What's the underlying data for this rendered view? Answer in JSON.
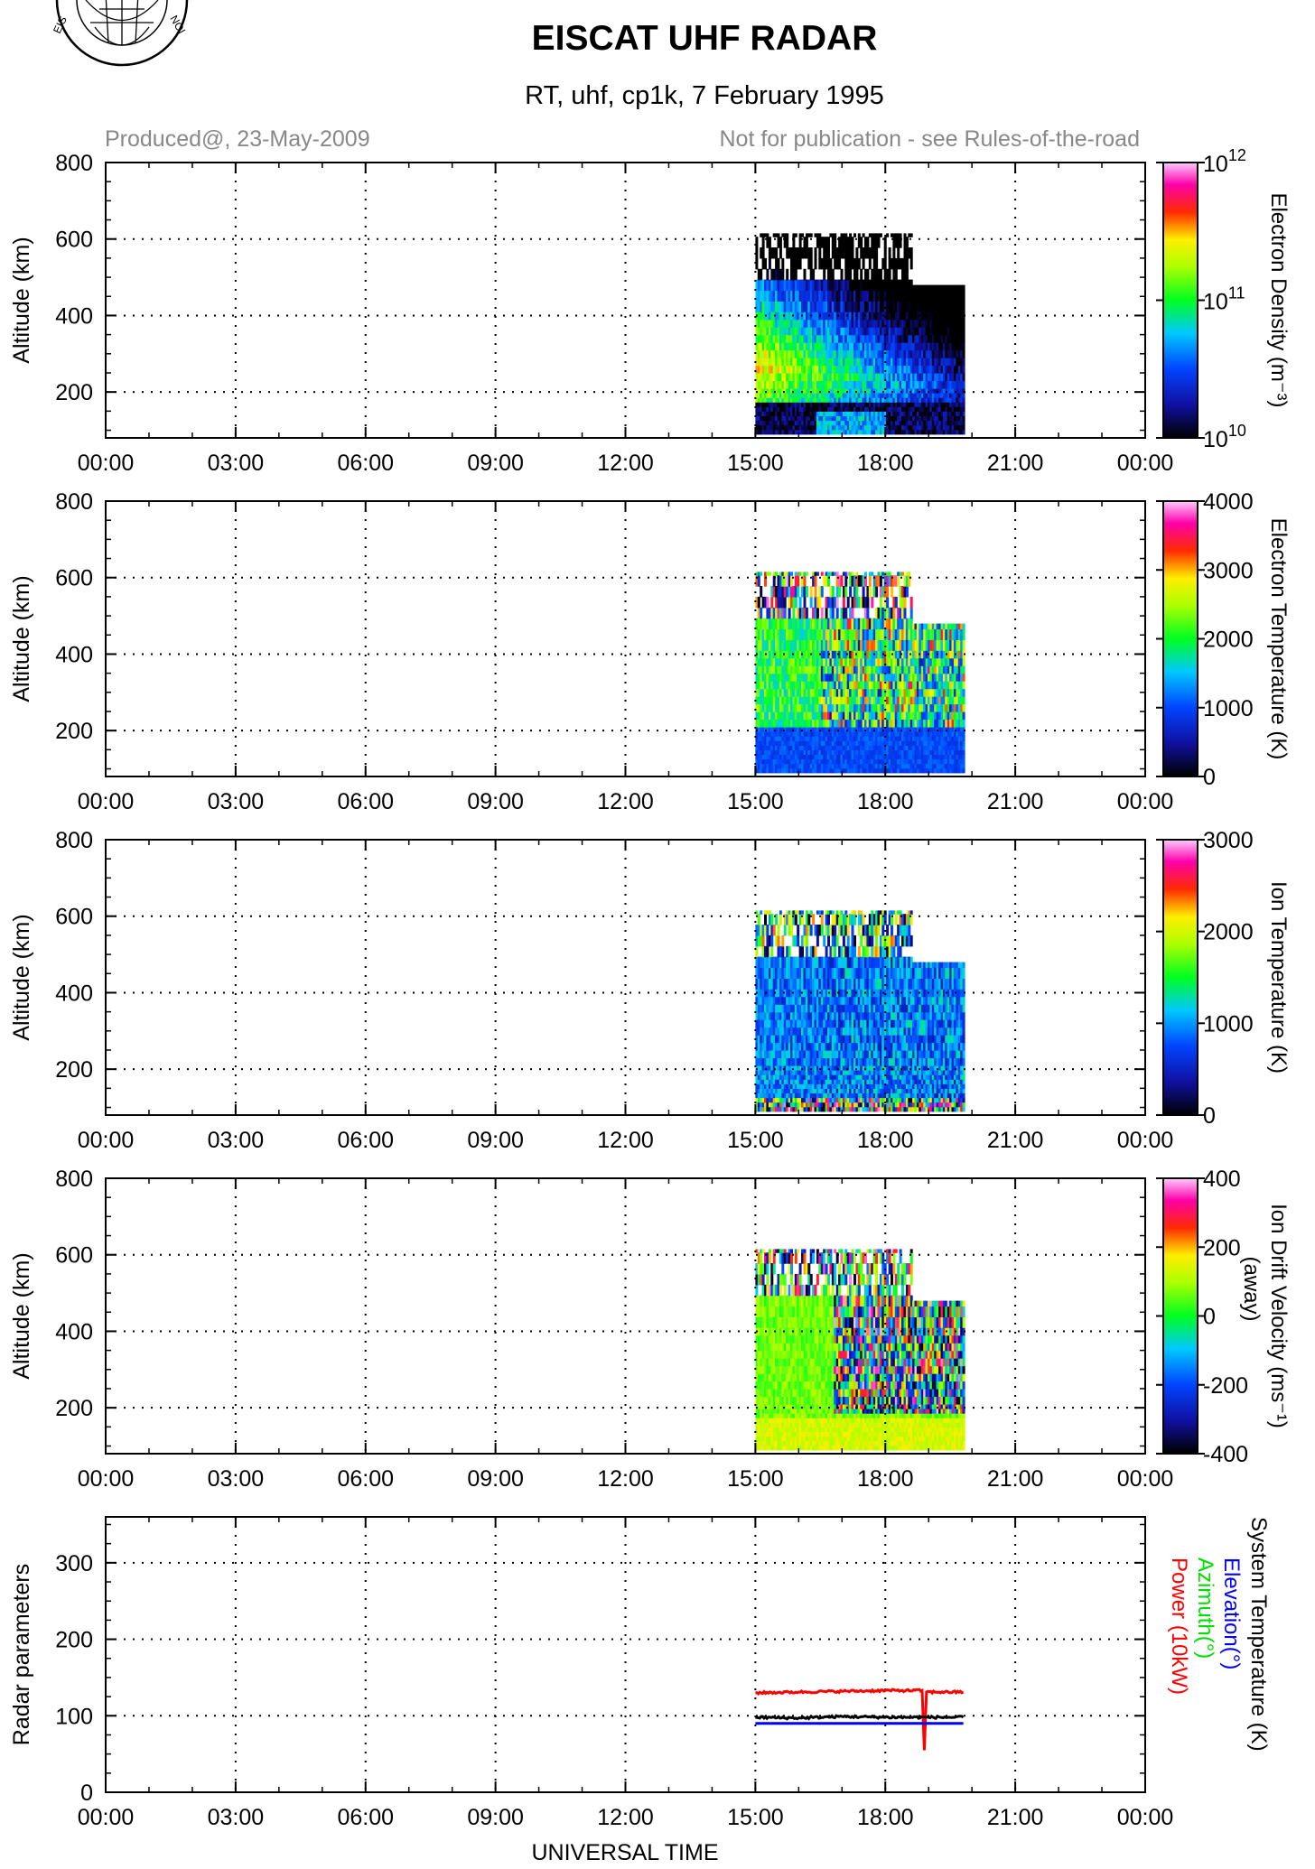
{
  "header": {
    "title": "EISCAT UHF RADAR",
    "subtitle": "RT, uhf, cp1k, 7 February 1995",
    "produced": "Produced@, 23-May-2009",
    "notice": "Not for publication - see Rules-of-the-road",
    "logo_text": "EISCAT NORWAY"
  },
  "x_axis": {
    "label": "UNIVERSAL TIME",
    "tick_labels": [
      "00:00",
      "03:00",
      "06:00",
      "09:00",
      "12:00",
      "15:00",
      "18:00",
      "21:00",
      "00:00"
    ],
    "range_hours": [
      0,
      24
    ]
  },
  "colors": {
    "power": "#ff0000",
    "elevation": "#0000ff",
    "azimuth": "#00dd00",
    "system_temperature": "#000000",
    "grid": "#000000"
  },
  "chart_data": [
    {
      "type": "heatmap",
      "name": "Electron Density",
      "ylabel": "Altitude (km)",
      "ylim": [
        80,
        800
      ],
      "yticks": [
        "200",
        "400",
        "600",
        "800"
      ],
      "colorbar_label": "Electron Density (m⁻³)",
      "colorbar_scale": "log",
      "colorbar_ticks": [
        {
          "base": "10",
          "exp": "10"
        },
        {
          "base": "10",
          "exp": "11"
        },
        {
          "base": "10",
          "exp": "12"
        }
      ],
      "data_extent": {
        "time_start": "15:00",
        "time_end": "19:50",
        "alt_min": 90,
        "alt_max": 615
      },
      "grid": true
    },
    {
      "type": "heatmap",
      "name": "Electron Temperature",
      "ylabel": "Altitude (km)",
      "ylim": [
        80,
        800
      ],
      "yticks": [
        "200",
        "400",
        "600",
        "800"
      ],
      "colorbar_label": "Electron Temperature (K)",
      "colorbar_ticks": [
        "0",
        "1000",
        "2000",
        "3000",
        "4000"
      ],
      "data_extent": {
        "time_start": "15:00",
        "time_end": "19:50",
        "alt_min": 90,
        "alt_max": 615
      },
      "grid": true
    },
    {
      "type": "heatmap",
      "name": "Ion Temperature",
      "ylabel": "Altitude (km)",
      "ylim": [
        80,
        800
      ],
      "yticks": [
        "200",
        "400",
        "600",
        "800"
      ],
      "colorbar_label": "Ion Temperature (K)",
      "colorbar_ticks": [
        "0",
        "1000",
        "2000",
        "3000"
      ],
      "data_extent": {
        "time_start": "15:00",
        "time_end": "19:50",
        "alt_min": 90,
        "alt_max": 615
      },
      "grid": true
    },
    {
      "type": "heatmap",
      "name": "Ion Drift Velocity",
      "ylabel": "Altitude (km)",
      "ylim": [
        80,
        800
      ],
      "yticks": [
        "200",
        "400",
        "600",
        "800"
      ],
      "colorbar_label": "Ion Drift Velocity (ms⁻¹) (away)",
      "colorbar_ticks": [
        "-400",
        "-200",
        "0",
        "200",
        "400"
      ],
      "data_extent": {
        "time_start": "15:00",
        "time_end": "19:50",
        "alt_min": 90,
        "alt_max": 615
      },
      "grid": true
    },
    {
      "type": "line",
      "name": "Radar parameters",
      "ylabel": "Radar parameters",
      "ylim": [
        0,
        360
      ],
      "yticks": [
        "0",
        "100",
        "200",
        "300"
      ],
      "grid": true,
      "legend": [
        {
          "label": "System Temperature (K)",
          "color": "#000000"
        },
        {
          "label": "Elevation(°)",
          "color": "#0000ff"
        },
        {
          "label": "Azimuth(°)",
          "color": "#00dd00"
        },
        {
          "label": "Power (10kW)",
          "color": "#ff0000"
        }
      ],
      "series": [
        {
          "name": "Power (10kW)",
          "color": "#ff0000",
          "x": [
            15.0,
            16.0,
            17.0,
            18.0,
            18.85,
            18.9,
            18.95,
            19.8
          ],
          "y": [
            130,
            131,
            132,
            133,
            133,
            55,
            131,
            131
          ]
        },
        {
          "name": "System Temperature (K)",
          "color": "#000000",
          "x": [
            15.0,
            16.0,
            17.0,
            18.0,
            19.0,
            19.8
          ],
          "y": [
            98,
            97,
            99,
            98,
            98,
            98
          ]
        },
        {
          "name": "Elevation(°)",
          "color": "#0000ff",
          "x": [
            15.0,
            19.8
          ],
          "y": [
            90,
            90
          ]
        }
      ]
    }
  ]
}
